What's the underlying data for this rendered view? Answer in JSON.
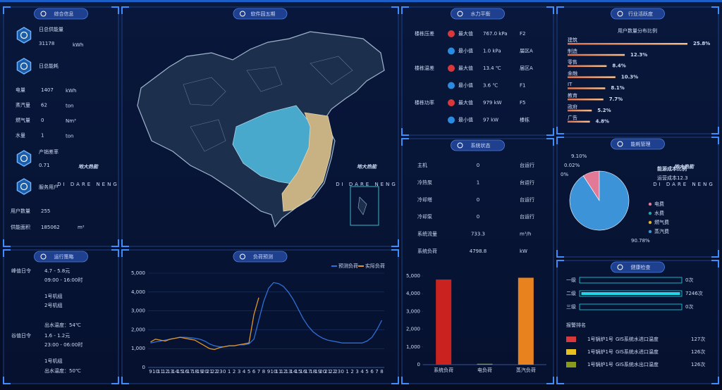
{
  "watermark": {
    "cn": "地大热能",
    "en": "DI DARE NENG"
  },
  "overview": {
    "title": "综合信息",
    "daily_supply": {
      "label": "日总供能量",
      "value": "31178",
      "unit": "kWh"
    },
    "daily_consumption": {
      "label": "日总能耗"
    },
    "rows": [
      {
        "label": "电量",
        "value": "1407",
        "unit": "kWh"
      },
      {
        "label": "蒸汽量",
        "value": "62",
        "unit": "ton"
      },
      {
        "label": "燃气量",
        "value": "0",
        "unit": "Nm³"
      },
      {
        "label": "水量",
        "value": "1",
        "unit": "ton"
      }
    ],
    "loss_rate": {
      "label": "产销差率",
      "value": "0.71"
    },
    "service": {
      "label": "服务用户"
    },
    "users": {
      "label": "用户数量",
      "value": "255"
    },
    "area": {
      "label": "供能面积",
      "value": "185062",
      "unit": "m²"
    }
  },
  "map": {
    "title": "软件园五期"
  },
  "hydraulic": {
    "title": "水力平衡",
    "rows": [
      {
        "group": "楼栋压差",
        "kind": "最大值",
        "value": "767.0 kPa",
        "location": "F2"
      },
      {
        "kind": "最小值",
        "value": "1.0 kPa",
        "location": "届区A"
      },
      {
        "group": "楼栋温差",
        "kind": "最大值",
        "value": "13.4 ℃",
        "location": "届区A"
      },
      {
        "kind": "最小值",
        "value": "3.6 ℃",
        "location": "F1"
      },
      {
        "group": "楼栋功率",
        "kind": "最大值",
        "value": "979 kW",
        "location": "F5"
      },
      {
        "kind": "最小值",
        "value": "97 kW",
        "location": "楼栋"
      }
    ]
  },
  "industry": {
    "title": "行业活跃度"
  },
  "system": {
    "title": "系统状态",
    "rows": [
      {
        "label": "主机",
        "value": "0",
        "unit": "台运行"
      },
      {
        "label": "冷热泵",
        "value": "1",
        "unit": "台运行"
      },
      {
        "label": "冷却塔",
        "value": "0",
        "unit": "台运行"
      },
      {
        "label": "冷却泵",
        "value": "0",
        "unit": "台运行"
      },
      {
        "label": "系统流量",
        "value": "733.3",
        "unit": "m³/h"
      },
      {
        "label": "系统负荷",
        "value": "4798.8",
        "unit": "kW"
      }
    ]
  },
  "energy": {
    "title": "能耗管理"
  },
  "strategy": {
    "title": "运行策略",
    "peak": {
      "label": "峰值日令",
      "price": "4.7 - 5.8元",
      "time": "09:00 - 16:00时",
      "units": [
        "1号机组",
        "2号机组"
      ],
      "temp": "出水温度：54℃"
    },
    "valley": {
      "label": "谷值日令",
      "price": "1.6 - 1.2元",
      "time": "23:00 - 06:00时",
      "units": [
        "1号机组"
      ],
      "temp": "出水温度：50℃"
    }
  },
  "forecast": {
    "title": "负荷预测"
  },
  "health": {
    "title": "健康检查",
    "alarm_title": "报警排名",
    "alarms": [
      {
        "name": "1号锅炉1号",
        "point": "GIS系统水进口温度",
        "count": "127次"
      },
      {
        "name": "1号锅炉1号",
        "point": "GIS系统水进口温度",
        "count": "126次"
      },
      {
        "name": "1号锅炉1号",
        "point": "GIS系统水出口温度",
        "count": "126次"
      }
    ]
  },
  "chart_data": [
    {
      "type": "line",
      "categories": [
        "9",
        "10",
        "11",
        "12",
        "13",
        "14",
        "15",
        "16",
        "17",
        "18",
        "19",
        "20",
        "21",
        "22",
        "23",
        "0",
        "1",
        "2",
        "3",
        "4",
        "5",
        "6",
        "7",
        "8",
        "9",
        "10",
        "11",
        "12",
        "13",
        "14",
        "15",
        "16",
        "17",
        "18",
        "19",
        "20",
        "21",
        "22",
        "23",
        "0",
        "1",
        "2",
        "3",
        "4",
        "5",
        "6",
        "7",
        "8"
      ],
      "series": [
        {
          "name": "预测负荷",
          "color": "#2f6fd6",
          "values": [
            1300,
            1350,
            1400,
            1450,
            1500,
            1550,
            1600,
            1600,
            1580,
            1550,
            1500,
            1400,
            1250,
            1150,
            1100,
            1100,
            1150,
            1150,
            1200,
            1200,
            1250,
            1500,
            2500,
            3500,
            4200,
            4500,
            4450,
            4300,
            4000,
            3600,
            3100,
            2600,
            2200,
            1900,
            1700,
            1550,
            1450,
            1400,
            1350,
            1300,
            1300,
            1300,
            1300,
            1300,
            1400,
            1600,
            2000,
            2500
          ]
        },
        {
          "name": "实际负荷",
          "color": "#e0962a",
          "values": [
            1350,
            1500,
            1450,
            1400,
            1500,
            1550,
            1600,
            1550,
            1500,
            1450,
            1300,
            1150,
            1000,
            950,
            1050,
            1100,
            1150,
            1150,
            1200,
            1250,
            1300,
            2800,
            3700,
            null,
            null,
            null,
            null,
            null,
            null,
            null,
            null,
            null,
            null,
            null,
            null,
            null,
            null,
            null,
            null,
            null,
            null,
            null,
            null,
            null,
            null,
            null,
            null,
            null
          ]
        }
      ],
      "ylim": [
        0,
        5000
      ],
      "yticks": [
        0,
        {
          "value": 1000,
          "label": "1,000"
        },
        {
          "value": 2000,
          "label": "2,000"
        },
        {
          "value": 3000,
          "label": "3,000"
        },
        {
          "value": 4000,
          "label": "4,000"
        },
        {
          "value": 5000,
          "label": "5,000"
        }
      ]
    },
    {
      "type": "bar",
      "categories": [
        "系统负荷",
        "电负荷",
        "蒸汽负荷"
      ],
      "values": [
        4800,
        50,
        4900
      ],
      "colors": [
        "#c9221f",
        "#8a9a1c",
        "#e8821e"
      ],
      "ylim": [
        0,
        5000
      ],
      "yticks": [
        0,
        {
          "value": 1000,
          "label": "1,000"
        },
        {
          "value": 2000,
          "label": "2,000"
        },
        {
          "value": 3000,
          "label": "3,000"
        },
        {
          "value": 4000,
          "label": "4,000"
        },
        {
          "value": 5000,
          "label": "5,000"
        }
      ]
    },
    {
      "type": "pie",
      "title": "能源成本比例",
      "subtitle": "运营成本12.3",
      "categories": [
        "电费",
        "水费",
        "燃气费",
        "蒸汽费"
      ],
      "values": [
        9.1,
        0.02,
        0,
        90.78
      ],
      "value_labels": [
        "9.10%",
        "0.02%",
        "0%",
        "90.78%"
      ],
      "colors": [
        "#e27a97",
        "#22a6a0",
        "#e8b030",
        "#3d93d8"
      ]
    },
    {
      "type": "hbar",
      "title": "用户数量分布比例",
      "categories": [
        "建筑",
        "制造",
        "零售",
        "金融",
        "IT",
        "教育",
        "政府",
        "广告"
      ],
      "values": [
        25.8,
        12.3,
        8.4,
        10.3,
        8.1,
        7.7,
        5.2,
        4.8
      ],
      "value_labels": [
        "25.8%",
        "12.3%",
        "8.4%",
        "10.3%",
        "8.1%",
        "7.7%",
        "5.2%",
        "4.8%"
      ],
      "color": "#f09a6a"
    },
    {
      "type": "hbar",
      "categories": [
        "一级",
        "二级",
        "三级"
      ],
      "values": [
        0,
        7246,
        0
      ],
      "value_labels": [
        "0次",
        "7246次",
        "0次"
      ],
      "color": "#22d8e8"
    }
  ]
}
